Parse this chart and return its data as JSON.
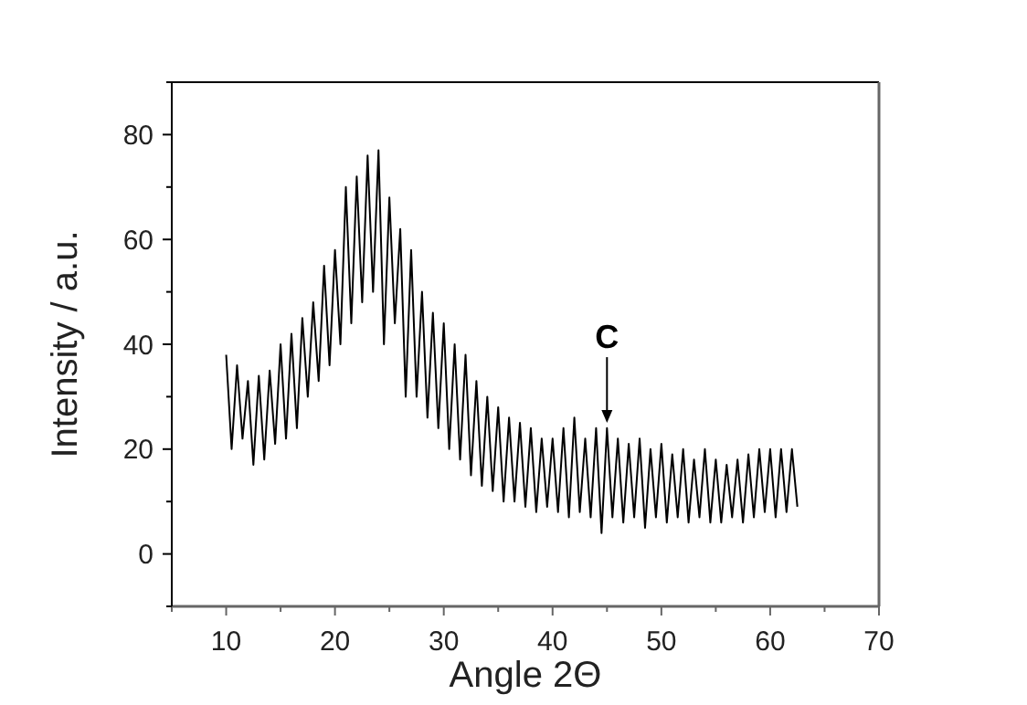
{
  "chart_data": {
    "type": "line",
    "xlabel": "Angle 2Θ",
    "ylabel": "Intensity / a.u.",
    "xlim": [
      5,
      70
    ],
    "ylim": [
      -10,
      90
    ],
    "xticks": [
      {
        "value": 5,
        "label": null
      },
      10,
      {
        "value": 15,
        "label": null
      },
      20,
      {
        "value": 25,
        "label": null
      },
      30,
      {
        "value": 35,
        "label": null
      },
      40,
      {
        "value": 45,
        "label": null
      },
      50,
      {
        "value": 55,
        "label": null
      },
      60,
      {
        "value": 65,
        "label": null
      },
      70
    ],
    "yticks": [
      {
        "value": -10,
        "label": null
      },
      0,
      {
        "value": 10,
        "label": null
      },
      20,
      {
        "value": 30,
        "label": null
      },
      40,
      {
        "value": 50,
        "label": null
      },
      60,
      {
        "value": 70,
        "label": null
      },
      80,
      {
        "value": 90,
        "label": null
      }
    ],
    "grid": false,
    "marker": "none",
    "line_style": "solid",
    "annotations": [
      {
        "text": "C",
        "x": 45,
        "y": 25
      }
    ],
    "series": [
      {
        "color": "#000000",
        "x": [
          10,
          10.5,
          11,
          11.5,
          12,
          12.5,
          13,
          13.5,
          14,
          14.5,
          15,
          15.5,
          16,
          16.5,
          17,
          17.5,
          18,
          18.5,
          19,
          19.5,
          20,
          20.5,
          21,
          21.5,
          22,
          22.5,
          23,
          23.5,
          24,
          24.5,
          25,
          25.5,
          26,
          26.5,
          27,
          27.5,
          28,
          28.5,
          29,
          29.5,
          30,
          30.5,
          31,
          31.5,
          32,
          32.5,
          33,
          33.5,
          34,
          34.5,
          35,
          35.5,
          36,
          36.5,
          37,
          37.5,
          38,
          38.5,
          39,
          39.5,
          40,
          40.5,
          41,
          41.5,
          42,
          42.5,
          43,
          43.5,
          44,
          44.5,
          45,
          45.5,
          46,
          46.5,
          47,
          47.5,
          48,
          48.5,
          49,
          49.5,
          50,
          50.5,
          51,
          51.5,
          52,
          52.5,
          53,
          53.5,
          54,
          54.5,
          55,
          55.5,
          56,
          56.5,
          57,
          57.5,
          58,
          58.5,
          59,
          59.5,
          60,
          60.5,
          61,
          61.5,
          62,
          62.5
        ],
        "values": [
          38,
          20,
          36,
          22,
          33,
          17,
          34,
          18,
          35,
          21,
          40,
          22,
          42,
          24,
          45,
          30,
          48,
          33,
          55,
          36,
          58,
          40,
          70,
          44,
          72,
          48,
          76,
          50,
          77,
          40,
          68,
          44,
          62,
          30,
          58,
          30,
          50,
          26,
          46,
          24,
          44,
          20,
          40,
          18,
          38,
          15,
          33,
          13,
          30,
          12,
          28,
          10,
          26,
          10,
          25,
          9,
          24,
          8,
          22,
          9,
          22,
          8,
          24,
          7,
          26,
          8,
          22,
          7,
          24,
          4,
          24,
          7,
          22,
          6,
          21,
          7,
          22,
          5,
          20,
          7,
          21,
          6,
          19,
          7,
          20,
          6,
          18,
          7,
          20,
          6,
          18,
          6,
          17,
          7,
          18,
          6,
          19,
          7,
          20,
          8,
          20,
          7,
          20,
          8,
          20,
          9
        ]
      }
    ]
  }
}
